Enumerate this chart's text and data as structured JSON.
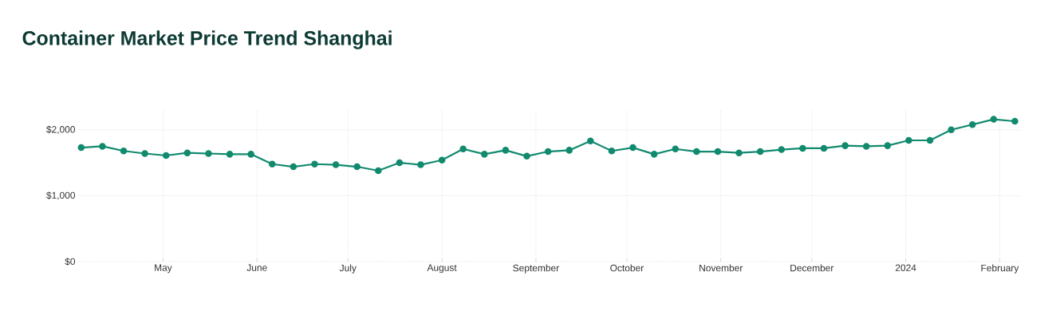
{
  "chart_data": {
    "type": "line",
    "title": "Container Market Price Trend Shanghai",
    "x": [
      "2023-04-04",
      "2023-04-11",
      "2023-04-18",
      "2023-04-25",
      "2023-05-02",
      "2023-05-09",
      "2023-05-16",
      "2023-05-23",
      "2023-05-30",
      "2023-06-06",
      "2023-06-13",
      "2023-06-20",
      "2023-06-27",
      "2023-07-04",
      "2023-07-11",
      "2023-07-18",
      "2023-07-25",
      "2023-08-01",
      "2023-08-08",
      "2023-08-15",
      "2023-08-22",
      "2023-08-29",
      "2023-09-05",
      "2023-09-12",
      "2023-09-19",
      "2023-09-26",
      "2023-10-03",
      "2023-10-10",
      "2023-10-17",
      "2023-10-24",
      "2023-10-31",
      "2023-11-07",
      "2023-11-14",
      "2023-11-21",
      "2023-11-28",
      "2023-12-05",
      "2023-12-12",
      "2023-12-19",
      "2023-12-26",
      "2024-01-02",
      "2024-01-09",
      "2024-01-16",
      "2024-01-23",
      "2024-01-30",
      "2024-02-06"
    ],
    "values": [
      1730,
      1750,
      1680,
      1640,
      1610,
      1650,
      1640,
      1630,
      1630,
      1480,
      1440,
      1480,
      1470,
      1440,
      1380,
      1500,
      1470,
      1540,
      1710,
      1630,
      1690,
      1600,
      1670,
      1690,
      1830,
      1680,
      1730,
      1630,
      1710,
      1670,
      1670,
      1650,
      1670,
      1700,
      1720,
      1720,
      1760,
      1750,
      1760,
      1840,
      1840,
      2000,
      2080,
      2160,
      2130
    ],
    "color": "#118a6e",
    "marker": "circle",
    "line_style": "solid",
    "grid": true,
    "xlim": [
      "2023-04-03",
      "2024-02-08"
    ],
    "xticks": [
      {
        "value": "2023-05-01",
        "label": "May"
      },
      {
        "value": "2023-06-01",
        "label": "June"
      },
      {
        "value": "2023-07-01",
        "label": "July"
      },
      {
        "value": "2023-08-01",
        "label": "August"
      },
      {
        "value": "2023-09-01",
        "label": "September"
      },
      {
        "value": "2023-10-01",
        "label": "October"
      },
      {
        "value": "2023-11-01",
        "label": "November"
      },
      {
        "value": "2023-12-01",
        "label": "December"
      },
      {
        "value": "2024-01-01",
        "label": "2024"
      },
      {
        "value": "2024-02-01",
        "label": "February"
      }
    ],
    "ylim": [
      0,
      2300
    ],
    "yticks": [
      {
        "value": 0,
        "label": "$0"
      },
      {
        "value": 1000,
        "label": "$1,000"
      },
      {
        "value": 2000,
        "label": "$2,000"
      }
    ]
  }
}
